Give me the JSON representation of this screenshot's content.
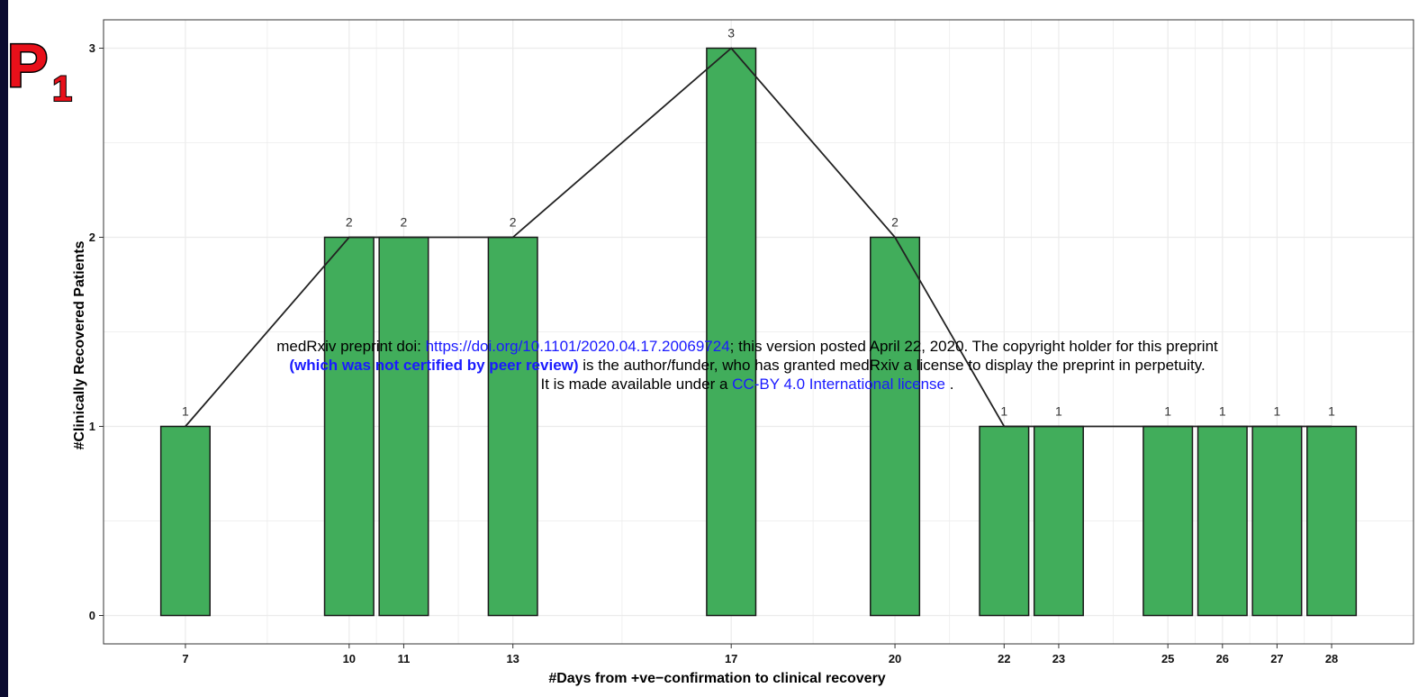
{
  "panel_label": {
    "letter": "P",
    "subscript": "1"
  },
  "watermark": {
    "line1_prefix": "medRxiv preprint doi: ",
    "line1_link": "https://doi.org/10.1101/2020.04.17.20069724",
    "line1_suffix": "; this version posted April 22, 2020. The copyright holder for this preprint",
    "line2_bold": "(which was not certified by peer review)",
    "line2_rest": " is the author/funder, who has granted medRxiv a license to display the preprint in perpetuity.",
    "line3_prefix": "It is made available under a ",
    "line3_link": "CC-BY 4.0 International license",
    "line3_suffix": " ."
  },
  "colors": {
    "bar_fill": "#41ad5b",
    "bar_stroke": "#1a1a1a",
    "line": "#222222",
    "grid": "#ebebeb",
    "panel_letter": "#e8101a",
    "left_strip": "#0b0b30",
    "link": "#1a1aff"
  },
  "chart_data": {
    "type": "bar",
    "title": "",
    "xlabel": "#Days from +ve−confirmation to clinical recovery",
    "ylabel": "#Clinically Recovered Patients",
    "x": [
      7,
      10,
      11,
      13,
      17,
      20,
      22,
      23,
      25,
      26,
      27,
      28
    ],
    "values": [
      1,
      2,
      2,
      2,
      3,
      2,
      1,
      1,
      1,
      1,
      1,
      1
    ],
    "data_labels": [
      "1",
      "2",
      "2",
      "2",
      "3",
      "2",
      "1",
      "1",
      "1",
      "1",
      "1",
      "1"
    ],
    "x_ticks": [
      "7",
      "10",
      "11",
      "13",
      "17",
      "20",
      "22",
      "23",
      "25",
      "26",
      "27",
      "28"
    ],
    "y_ticks": [
      "0",
      "1",
      "2",
      "3"
    ],
    "ylim": [
      -0.15,
      3.15
    ],
    "xlim": [
      5.5,
      29.5
    ],
    "overlay": "line connecting bar tops",
    "grid": true,
    "legend": "none"
  }
}
